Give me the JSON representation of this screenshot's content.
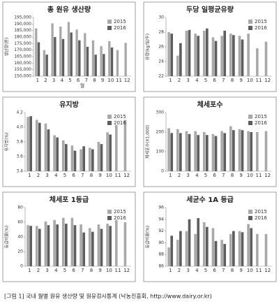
{
  "chart_data": [
    {
      "type": "bar",
      "title": "총 원유 생산량",
      "ylabel": "생산량(톤)",
      "xlabel": "월",
      "legend": "top-right",
      "categories": [
        1,
        2,
        3,
        4,
        5,
        6,
        7,
        8,
        9,
        10,
        11,
        12
      ],
      "ylim": [
        150000,
        195000
      ],
      "yticks": [
        {
          "value": 150000,
          "label": "150,000"
        },
        {
          "value": 155000,
          "label": "155,000"
        },
        {
          "value": 160000,
          "label": "160,000"
        },
        {
          "value": 165000,
          "label": "165,000"
        },
        {
          "value": 170000,
          "label": "170,000"
        },
        {
          "value": 175000,
          "label": "175,000"
        },
        {
          "value": 180000,
          "label": "180,000"
        },
        {
          "value": 185000,
          "label": "185,000"
        },
        {
          "value": 190000,
          "label": "190,000"
        },
        {
          "value": 195000,
          "label": "195,000"
        }
      ],
      "series": [
        {
          "name": "2015",
          "color": "#a9a9a9",
          "values": [
            186700,
            170000,
            190500,
            188000,
            191500,
            185700,
            183000,
            177500,
            173000,
            176800,
            170000,
            175500
          ]
        },
        {
          "name": "2016",
          "color": "#5e5e5e",
          "values": [
            176000,
            166500,
            180000,
            178500,
            183500,
            177500,
            172500,
            166500,
            167000,
            172000,
            null,
            null
          ]
        }
      ]
    },
    {
      "type": "bar",
      "title": "두당 일평균유량",
      "ylabel": "유량(kg/일/두)",
      "legend": "top-right",
      "categories": [
        1,
        2,
        3,
        4,
        5,
        6,
        7,
        8,
        9,
        10,
        11,
        12
      ],
      "ylim": [
        22,
        30
      ],
      "yticks": [
        22,
        24,
        26,
        28,
        30
      ],
      "series": [
        {
          "name": "2015",
          "color": "#a9a9a9",
          "values": [
            28.0,
            24.8,
            28.2,
            27.8,
            28.2,
            27.3,
            27.5,
            27.8,
            27.5,
            27.8,
            25.8,
            26.7
          ]
        },
        {
          "name": "2016",
          "color": "#5e5e5e",
          "values": [
            27.8,
            26.5,
            28.3,
            27.5,
            28.5,
            26.8,
            28.2,
            27.6,
            27.0,
            null,
            null,
            null
          ]
        }
      ]
    },
    {
      "type": "bar",
      "title": "유지방",
      "ylabel": "유지방(%)",
      "legend": "top-right",
      "categories": [
        1,
        2,
        3,
        4,
        5,
        6,
        7,
        8,
        9,
        10,
        11,
        12
      ],
      "ylim": [
        3.4,
        4.2
      ],
      "yticks": [
        3.4,
        3.6,
        3.8,
        {
          "value": 4,
          "label": "4.0"
        },
        4.2
      ],
      "series": [
        {
          "name": "2015",
          "color": "#a9a9a9",
          "values": [
            4.14,
            4.1,
            4.05,
            3.89,
            3.82,
            3.75,
            3.7,
            3.72,
            3.8,
            3.93,
            4.03,
            4.1
          ]
        },
        {
          "name": "2016",
          "color": "#5e5e5e",
          "values": [
            4.15,
            4.06,
            3.97,
            3.86,
            3.77,
            3.68,
            3.74,
            3.7,
            3.77,
            3.9,
            null,
            null
          ]
        }
      ]
    },
    {
      "type": "bar",
      "title": "체세포수",
      "ylabel": "체세포수(X1,000)",
      "legend": "top-right",
      "categories": [
        1,
        2,
        3,
        4,
        5,
        6,
        7,
        8,
        9,
        10,
        11,
        12
      ],
      "ylim": [
        0,
        300
      ],
      "yticks": [
        0,
        100,
        200,
        300
      ],
      "series": [
        {
          "name": "2015",
          "color": "#a9a9a9",
          "values": [
            220,
            215,
            205,
            205,
            200,
            190,
            205,
            230,
            215,
            205,
            200,
            205
          ]
        },
        {
          "name": "2016",
          "color": "#5e5e5e",
          "values": [
            195,
            195,
            190,
            185,
            185,
            180,
            195,
            210,
            210,
            200,
            null,
            null
          ]
        }
      ]
    },
    {
      "type": "bar",
      "title": "체세포 1등급",
      "ylabel": "등급비율(%)",
      "legend": "top-right",
      "categories": [
        1,
        2,
        3,
        4,
        5,
        6,
        7,
        8,
        9,
        10,
        11,
        12
      ],
      "ylim": [
        0,
        80
      ],
      "yticks": [
        0,
        20,
        40,
        60,
        80
      ],
      "series": [
        {
          "name": "2015",
          "color": "#a9a9a9",
          "values": [
            56,
            55,
            61,
            63,
            66,
            66,
            57,
            52,
            57,
            58,
            63,
            60
          ]
        },
        {
          "name": "2016",
          "color": "#5e5e5e",
          "values": [
            55,
            51,
            56,
            57,
            58,
            56,
            46,
            47,
            51,
            55,
            null,
            null
          ]
        }
      ]
    },
    {
      "type": "bar",
      "title": "세균수 1A 등급",
      "ylabel": "등급비율(%)",
      "legend": "top-right",
      "categories": [
        1,
        2,
        3,
        4,
        5,
        6,
        7,
        8,
        9,
        10,
        11,
        12
      ],
      "ylim": [
        86,
        96
      ],
      "yticks": [
        86,
        88,
        90,
        92,
        94,
        96
      ],
      "series": [
        {
          "name": "2015",
          "color": "#a9a9a9",
          "values": [
            89.2,
            90.5,
            92.0,
            91.5,
            93.5,
            92.5,
            90.5,
            91.5,
            92.0,
            93.2,
            91.5,
            91.5
          ]
        },
        {
          "name": "2016",
          "color": "#5e5e5e",
          "values": [
            91.2,
            92.0,
            94.0,
            94.2,
            92.7,
            90.3,
            89.8,
            92.0,
            91.8,
            92.5,
            null,
            null
          ]
        }
      ]
    }
  ],
  "caption": "[그림 1] 국내 월별 원유 생산량 및 원유검사통계 (낙농진흥회, http://www.dairy.or.kr)"
}
